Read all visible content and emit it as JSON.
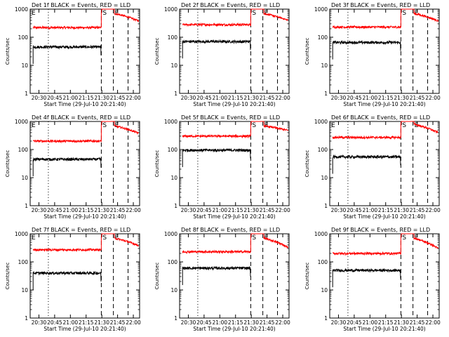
{
  "chart_data": [
    {
      "type": "line",
      "title": "Det 1f BLACK = Events, RED = LLD",
      "xlabel": "Start Time (29-Jul-10 20:21:40)",
      "ylabel": "Counts/sec",
      "x_ticks": [
        "20:30",
        "20:45",
        "21:00",
        "21:15",
        "21:30",
        "21:45",
        "22:00"
      ],
      "y_ticks": [
        "1",
        "10",
        "100",
        "1000"
      ],
      "yscale": "log",
      "ylim": [
        1,
        1000
      ],
      "annotations": [
        "E",
        "S",
        "E"
      ],
      "series": [
        {
          "color": "#ff0000",
          "level_before": 220,
          "level_after": 700,
          "tail_end": 380
        },
        {
          "color": "#000000",
          "level_before": 45
        }
      ]
    },
    {
      "type": "line",
      "title": "Det 2f BLACK = Events, RED = LLD",
      "xlabel": "Start Time (29-Jul-10 20:21:40)",
      "ylabel": "Counts/sec",
      "x_ticks": [
        "20:30",
        "20:45",
        "21:00",
        "21:15",
        "21:30",
        "21:45",
        "22:00"
      ],
      "y_ticks": [
        "1",
        "10",
        "100",
        "1000"
      ],
      "yscale": "log",
      "ylim": [
        1,
        1000
      ],
      "annotations": [
        "S",
        "E"
      ],
      "series": [
        {
          "color": "#ff0000",
          "level_before": 280,
          "level_after": 700,
          "tail_end": 400
        },
        {
          "color": "#000000",
          "level_before": 70
        }
      ]
    },
    {
      "type": "line",
      "title": "Det 3f BLACK = Events, RED = LLD",
      "xlabel": "Start Time (29-Jul-10 20:21:40)",
      "ylabel": "Counts/sec",
      "x_ticks": [
        "20:30",
        "20:45",
        "21:00",
        "21:15",
        "21:30",
        "21:45",
        "22:00"
      ],
      "y_ticks": [
        "1",
        "10",
        "100",
        "1000"
      ],
      "yscale": "log",
      "ylim": [
        1,
        1000
      ],
      "annotations": [
        "S",
        "E"
      ],
      "series": [
        {
          "color": "#ff0000",
          "level_before": 230,
          "level_after": 700,
          "tail_end": 380
        },
        {
          "color": "#000000",
          "level_before": 65
        }
      ]
    },
    {
      "type": "line",
      "title": "Det 4f BLACK = Events, RED = LLD",
      "xlabel": "Start Time (29-Jul-10 20:21:40)",
      "ylabel": "Counts/sec",
      "x_ticks": [
        "20:30",
        "20:45",
        "21:00",
        "21:15",
        "21:30",
        "21:45",
        "22:00"
      ],
      "y_ticks": [
        "1",
        "10",
        "100",
        "1000"
      ],
      "yscale": "log",
      "ylim": [
        1,
        1000
      ],
      "annotations": [
        "E",
        "S",
        "E"
      ],
      "series": [
        {
          "color": "#ff0000",
          "level_before": 200,
          "level_after": 700,
          "tail_end": 380
        },
        {
          "color": "#000000",
          "level_before": 45
        }
      ]
    },
    {
      "type": "line",
      "title": "Det 5f BLACK = Events, RED = LLD",
      "xlabel": "Start Time (29-Jul-10 20:21:40)",
      "ylabel": "Counts/sec",
      "x_ticks": [
        "20:30",
        "20:45",
        "21:00",
        "21:15",
        "21:30",
        "21:45",
        "22:00"
      ],
      "y_ticks": [
        "1",
        "10",
        "100",
        "1000"
      ],
      "yscale": "log",
      "ylim": [
        1,
        1000
      ],
      "annotations": [
        "S",
        "E"
      ],
      "series": [
        {
          "color": "#ff0000",
          "level_before": 300,
          "level_after": 700,
          "tail_end": 480
        },
        {
          "color": "#000000",
          "level_before": 95
        }
      ]
    },
    {
      "type": "line",
      "title": "Det 6f BLACK = Events, RED = LLD",
      "xlabel": "Start Time (29-Jul-10 20:21:40)",
      "ylabel": "Counts/sec",
      "x_ticks": [
        "20:30",
        "20:45",
        "21:00",
        "21:15",
        "21:30",
        "21:45",
        "22:00"
      ],
      "y_ticks": [
        "1",
        "10",
        "100",
        "1000"
      ],
      "yscale": "log",
      "ylim": [
        1,
        1000
      ],
      "annotations": [
        "E",
        "S",
        "E"
      ],
      "series": [
        {
          "color": "#ff0000",
          "level_before": 270,
          "level_after": 800,
          "tail_end": 400
        },
        {
          "color": "#000000",
          "level_before": 55
        }
      ]
    },
    {
      "type": "line",
      "title": "Det 7f BLACK = Events, RED = LLD",
      "xlabel": "Start Time (29-Jul-10 20:21:40)",
      "ylabel": "Counts/sec",
      "x_ticks": [
        "20:30",
        "20:45",
        "21:00",
        "21:15",
        "21:30",
        "21:45",
        "22:00"
      ],
      "y_ticks": [
        "1",
        "10",
        "100",
        "1000"
      ],
      "yscale": "log",
      "ylim": [
        1,
        1000
      ],
      "annotations": [
        "E",
        "S",
        "E"
      ],
      "series": [
        {
          "color": "#ff0000",
          "level_before": 270,
          "level_after": 700,
          "tail_end": 380
        },
        {
          "color": "#000000",
          "level_before": 40
        }
      ]
    },
    {
      "type": "line",
      "title": "Det 8f BLACK = Events, RED = LLD",
      "xlabel": "Start Time (29-Jul-10 20:21:40)",
      "ylabel": "Counts/sec",
      "x_ticks": [
        "20:30",
        "20:45",
        "21:00",
        "21:15",
        "21:30",
        "21:45",
        "22:00"
      ],
      "y_ticks": [
        "1",
        "10",
        "100",
        "1000"
      ],
      "yscale": "log",
      "ylim": [
        1,
        1000
      ],
      "annotations": [
        "S",
        "E"
      ],
      "series": [
        {
          "color": "#ff0000",
          "level_before": 230,
          "level_after": 700,
          "tail_end": 330
        },
        {
          "color": "#000000",
          "level_before": 60
        }
      ]
    },
    {
      "type": "line",
      "title": "Det 9f BLACK = Events, RED = LLD",
      "xlabel": "Start Time (29-Jul-10 20:21:40)",
      "ylabel": "Counts/sec",
      "x_ticks": [
        "20:30",
        "20:45",
        "21:00",
        "21:15",
        "21:30",
        "21:45",
        "22:00"
      ],
      "y_ticks": [
        "1",
        "10",
        "100",
        "1000"
      ],
      "yscale": "log",
      "ylim": [
        1,
        1000
      ],
      "annotations": [
        "S",
        "E"
      ],
      "series": [
        {
          "color": "#ff0000",
          "level_before": 200,
          "level_after": 700,
          "tail_end": 300
        },
        {
          "color": "#000000",
          "level_before": 50
        }
      ]
    }
  ]
}
